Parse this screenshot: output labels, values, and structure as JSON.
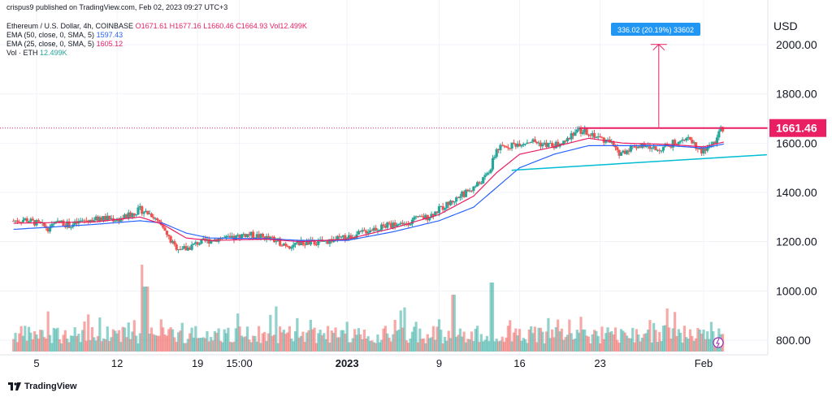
{
  "header": {
    "publisher_line": "crispus9 published on TradingView.com, Feb 02, 2023 09:27 UTC+3",
    "symbol_line": "Ethereum / U.S. Dollar, 4h, COINBASE",
    "ohlc": {
      "o": "O1671.61",
      "h": "H1677.16",
      "l": "L1660.46",
      "c": "C1664.93",
      "vol": "Vol12.499K"
    },
    "indicators": [
      {
        "label": "EMA (50, close, 0, SMA, 5)",
        "value": "1597.43",
        "color": "#2962ff"
      },
      {
        "label": "EMA (25, close, 0, SMA, 5)",
        "value": "1605.12",
        "color": "#e91e63"
      },
      {
        "label": "Vol · ETH",
        "value": "12.499K",
        "color": "#26a69a"
      }
    ]
  },
  "axis": {
    "currency": "USD",
    "y_ticks": [
      "2000.00",
      "1800.00",
      "1600.00",
      "1400.00",
      "1200.00",
      "1000.00",
      "800.00"
    ],
    "y_tick_values": [
      2000,
      1800,
      1600,
      1400,
      1200,
      1000,
      800
    ],
    "x_ticks": [
      "5",
      "12",
      "19",
      "15:00",
      "2023",
      "9",
      "16",
      "23",
      "Feb"
    ],
    "x_tick_positions_day": [
      5,
      12,
      19,
      22.625,
      32,
      40,
      47,
      54,
      63
    ]
  },
  "price_label": {
    "text": "1661.46",
    "value": 1661.46,
    "color": "#e91e63"
  },
  "measure_label": {
    "text": "336.02 (20.19%) 33602"
  },
  "footer": {
    "brand": "TradingView"
  },
  "colors": {
    "up": "#26a69a",
    "down": "#ef5350",
    "ema50": "#2962ff",
    "ema25": "#e91e63",
    "trendline": "#00bcd4",
    "resistance": "#e91e63",
    "grid": "#f0f3fa"
  },
  "chart_data": {
    "type": "candlestick",
    "symbol": "Ethereum / U.S. Dollar",
    "interval": "4h",
    "exchange": "COINBASE",
    "ylim": [
      760,
      2110
    ],
    "resistance_level": 1661.46,
    "measured_move": {
      "from": 1665,
      "to": 2001,
      "change": 336.02,
      "percent": 20.19
    },
    "trendline": {
      "start_day": 46.3,
      "start_value": 1490,
      "end_day": 68.5,
      "end_value": 1553
    },
    "close_anchors": [
      [
        3,
        1285
      ],
      [
        4,
        1290
      ],
      [
        5,
        1275
      ],
      [
        6,
        1255
      ],
      [
        7,
        1280
      ],
      [
        8,
        1265
      ],
      [
        9,
        1285
      ],
      [
        10,
        1290
      ],
      [
        11,
        1295
      ],
      [
        12,
        1290
      ],
      [
        13,
        1305
      ],
      [
        14,
        1330
      ],
      [
        15,
        1310
      ],
      [
        16,
        1250
      ],
      [
        17,
        1180
      ],
      [
        18,
        1170
      ],
      [
        19,
        1195
      ],
      [
        20,
        1205
      ],
      [
        21,
        1215
      ],
      [
        22,
        1210
      ],
      [
        23,
        1230
      ],
      [
        24,
        1225
      ],
      [
        25,
        1215
      ],
      [
        26,
        1200
      ],
      [
        27,
        1185
      ],
      [
        28,
        1195
      ],
      [
        29,
        1195
      ],
      [
        30,
        1200
      ],
      [
        31,
        1210
      ],
      [
        32,
        1215
      ],
      [
        33,
        1230
      ],
      [
        34,
        1250
      ],
      [
        35,
        1260
      ],
      [
        36,
        1270
      ],
      [
        37,
        1275
      ],
      [
        38,
        1290
      ],
      [
        39,
        1300
      ],
      [
        40,
        1330
      ],
      [
        41,
        1360
      ],
      [
        42,
        1390
      ],
      [
        43,
        1420
      ],
      [
        44,
        1460
      ],
      [
        44.5,
        1500
      ],
      [
        45,
        1575
      ],
      [
        46,
        1590
      ],
      [
        47,
        1600
      ],
      [
        48,
        1610
      ],
      [
        49,
        1595
      ],
      [
        50,
        1590
      ],
      [
        51,
        1600
      ],
      [
        51.5,
        1640
      ],
      [
        52,
        1650
      ],
      [
        53,
        1645
      ],
      [
        54,
        1620
      ],
      [
        55,
        1600
      ],
      [
        55.5,
        1560
      ],
      [
        56,
        1565
      ],
      [
        57,
        1590
      ],
      [
        58,
        1585
      ],
      [
        59,
        1575
      ],
      [
        60,
        1590
      ],
      [
        61,
        1620
      ],
      [
        62,
        1610
      ],
      [
        62.5,
        1575
      ],
      [
        63,
        1565
      ],
      [
        63.5,
        1590
      ],
      [
        64,
        1610
      ],
      [
        64.5,
        1655
      ],
      [
        64.8,
        1665
      ]
    ],
    "ema25_anchors": [
      [
        3,
        1275
      ],
      [
        10,
        1280
      ],
      [
        14,
        1300
      ],
      [
        16,
        1270
      ],
      [
        18,
        1215
      ],
      [
        20,
        1205
      ],
      [
        25,
        1210
      ],
      [
        28,
        1200
      ],
      [
        32,
        1210
      ],
      [
        36,
        1255
      ],
      [
        40,
        1310
      ],
      [
        43,
        1385
      ],
      [
        45,
        1480
      ],
      [
        47,
        1555
      ],
      [
        50,
        1585
      ],
      [
        53,
        1620
      ],
      [
        56,
        1600
      ],
      [
        60,
        1595
      ],
      [
        63,
        1585
      ],
      [
        64.8,
        1605
      ]
    ],
    "ema50_anchors": [
      [
        3,
        1250
      ],
      [
        10,
        1270
      ],
      [
        14,
        1285
      ],
      [
        16,
        1275
      ],
      [
        18,
        1235
      ],
      [
        20,
        1215
      ],
      [
        25,
        1212
      ],
      [
        28,
        1205
      ],
      [
        32,
        1205
      ],
      [
        36,
        1240
      ],
      [
        40,
        1285
      ],
      [
        43,
        1340
      ],
      [
        45,
        1420
      ],
      [
        47,
        1500
      ],
      [
        50,
        1555
      ],
      [
        53,
        1590
      ],
      [
        56,
        1590
      ],
      [
        60,
        1590
      ],
      [
        63,
        1580
      ],
      [
        64.8,
        1597
      ]
    ]
  }
}
